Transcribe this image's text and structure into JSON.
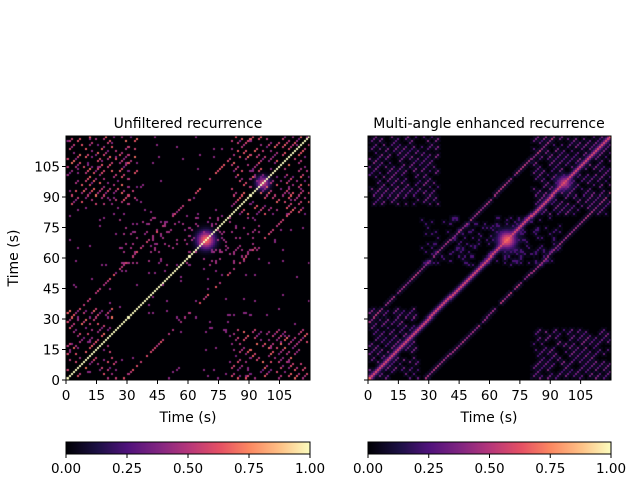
{
  "chart_data": [
    {
      "type": "heatmap",
      "title": "Unfiltered recurrence",
      "xlabel": "Time (s)",
      "ylabel": "Time (s)",
      "xlim": [
        0,
        120
      ],
      "ylim": [
        0,
        120
      ],
      "xticks": [
        0,
        15,
        30,
        45,
        60,
        75,
        90,
        105
      ],
      "yticks": [
        0,
        15,
        30,
        45,
        60,
        75,
        90,
        105
      ],
      "colormap": "magma",
      "colorbar": {
        "range": [
          0,
          1
        ],
        "ticks": [
          "0.00",
          "0.25",
          "0.50",
          "0.75",
          "1.00"
        ],
        "placement": "bottom"
      },
      "features": {
        "main_diagonal_value": 1.0,
        "hotspot_center_s": [
          68,
          68
        ],
        "hotspot_center_2_s": [
          96,
          96
        ],
        "offdiagonal_lag_s": 28,
        "style": "sparse"
      }
    },
    {
      "type": "heatmap",
      "title": "Multi-angle enhanced recurrence",
      "xlabel": "Time (s)",
      "ylabel": "",
      "xlim": [
        0,
        120
      ],
      "ylim": [
        0,
        120
      ],
      "xticks": [
        0,
        15,
        30,
        45,
        60,
        75,
        90,
        105
      ],
      "yticks": [
        0,
        15,
        30,
        45,
        60,
        75,
        90,
        105
      ],
      "colormap": "magma",
      "colorbar": {
        "range": [
          0,
          1
        ],
        "ticks": [
          "0.00",
          "0.25",
          "0.50",
          "0.75",
          "1.00"
        ],
        "placement": "bottom"
      },
      "features": {
        "main_diagonal_value": 0.75,
        "hotspot_center_s": [
          68,
          68
        ],
        "hotspot_center_2_s": [
          96,
          96
        ],
        "offdiagonal_lag_s": 28,
        "style": "smoothed"
      }
    }
  ]
}
